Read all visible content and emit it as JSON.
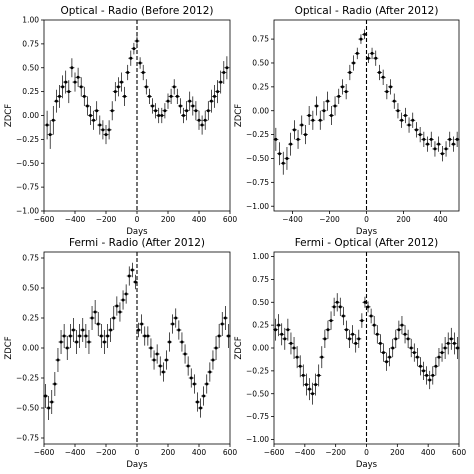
{
  "chart_data": [
    {
      "type": "scatter",
      "title": "Optical - Radio (Before 2012)",
      "xlabel": "Days",
      "ylabel": "ZDCF",
      "xlim": [
        -600,
        600
      ],
      "ylim": [
        -1.0,
        1.0
      ],
      "xticks": [
        -600,
        -400,
        -200,
        0,
        200,
        400,
        600
      ],
      "yticks": [
        -1.0,
        -0.75,
        -0.5,
        -0.25,
        0.0,
        0.25,
        0.5,
        0.75,
        1.0
      ],
      "ytick_labels": [
        "−1.00",
        "−0.75",
        "−0.50",
        "−0.25",
        "0.00",
        "0.25",
        "0.50",
        "0.75",
        "1.00"
      ],
      "vline_x": 0,
      "series": [
        {
          "x": [
            -580,
            -560,
            -540,
            -520,
            -500,
            -480,
            -460,
            -440,
            -420,
            -400,
            -380,
            -360,
            -340,
            -320,
            -300,
            -280,
            -260,
            -240,
            -220,
            -200,
            -180,
            -160,
            -140,
            -120,
            -100,
            -80,
            -60,
            -40,
            -20,
            0,
            20,
            40,
            60,
            80,
            100,
            120,
            140,
            160,
            180,
            200,
            220,
            240,
            260,
            280,
            300,
            320,
            340,
            360,
            380,
            400,
            420,
            440,
            460,
            480,
            500,
            520,
            540,
            560,
            580
          ],
          "y": [
            -0.1,
            -0.2,
            -0.05,
            0.15,
            0.2,
            0.3,
            0.35,
            0.25,
            0.5,
            0.35,
            0.4,
            0.3,
            0.2,
            0.1,
            0.0,
            -0.05,
            0.05,
            -0.1,
            -0.15,
            -0.2,
            -0.15,
            0.05,
            0.25,
            0.3,
            0.35,
            0.2,
            0.45,
            0.6,
            0.7,
            0.78,
            0.55,
            0.45,
            0.3,
            0.2,
            0.1,
            0.05,
            0.0,
            0.0,
            0.05,
            0.15,
            0.2,
            0.3,
            0.2,
            0.1,
            0.0,
            0.05,
            0.15,
            0.1,
            0.05,
            -0.05,
            -0.1,
            -0.05,
            0.05,
            0.15,
            0.2,
            0.25,
            0.35,
            0.45,
            0.5
          ],
          "err": [
            0.15,
            0.15,
            0.15,
            0.12,
            0.12,
            0.12,
            0.12,
            0.12,
            0.1,
            0.1,
            0.1,
            0.1,
            0.1,
            0.1,
            0.1,
            0.1,
            0.1,
            0.1,
            0.1,
            0.1,
            0.1,
            0.1,
            0.1,
            0.1,
            0.1,
            0.1,
            0.08,
            0.08,
            0.06,
            0.05,
            0.06,
            0.08,
            0.08,
            0.08,
            0.08,
            0.08,
            0.08,
            0.08,
            0.08,
            0.08,
            0.08,
            0.08,
            0.08,
            0.08,
            0.08,
            0.1,
            0.1,
            0.1,
            0.1,
            0.1,
            0.1,
            0.1,
            0.1,
            0.12,
            0.12,
            0.12,
            0.12,
            0.12,
            0.12
          ]
        }
      ]
    },
    {
      "type": "scatter",
      "title": "Optical - Radio (After 2012)",
      "xlabel": "Days",
      "ylabel": "ZDCF",
      "xlim": [
        -500,
        500
      ],
      "ylim": [
        -1.05,
        0.95
      ],
      "xticks": [
        -400,
        -200,
        0,
        200,
        400
      ],
      "yticks": [
        -1.0,
        -0.75,
        -0.5,
        -0.25,
        0.0,
        0.25,
        0.5,
        0.75
      ],
      "ytick_labels": [
        "−1.00",
        "−0.75",
        "−0.50",
        "−0.25",
        "0.00",
        "0.25",
        "0.50",
        "0.75"
      ],
      "vline_x": 0,
      "series": [
        {
          "x": [
            -490,
            -470,
            -450,
            -430,
            -410,
            -390,
            -370,
            -350,
            -330,
            -310,
            -290,
            -270,
            -250,
            -230,
            -210,
            -190,
            -170,
            -150,
            -130,
            -110,
            -90,
            -70,
            -50,
            -30,
            -10,
            10,
            30,
            50,
            70,
            90,
            110,
            130,
            150,
            170,
            190,
            210,
            230,
            250,
            270,
            290,
            310,
            330,
            350,
            370,
            390,
            410,
            430,
            450,
            470,
            490
          ],
          "y": [
            -0.3,
            -0.45,
            -0.55,
            -0.5,
            -0.35,
            -0.2,
            -0.3,
            -0.15,
            -0.25,
            -0.05,
            -0.1,
            0.05,
            -0.1,
            0.0,
            0.1,
            -0.05,
            0.05,
            0.15,
            0.25,
            0.2,
            0.4,
            0.5,
            0.6,
            0.75,
            0.8,
            0.55,
            0.6,
            0.55,
            0.4,
            0.35,
            0.2,
            0.25,
            0.1,
            0.0,
            -0.1,
            -0.05,
            -0.15,
            -0.1,
            -0.2,
            -0.25,
            -0.3,
            -0.35,
            -0.3,
            -0.4,
            -0.35,
            -0.45,
            -0.4,
            -0.3,
            -0.35,
            -0.3
          ],
          "err": [
            0.12,
            0.12,
            0.12,
            0.12,
            0.12,
            0.1,
            0.1,
            0.1,
            0.1,
            0.1,
            0.1,
            0.1,
            0.1,
            0.1,
            0.1,
            0.1,
            0.1,
            0.08,
            0.08,
            0.08,
            0.08,
            0.08,
            0.06,
            0.05,
            0.05,
            0.05,
            0.06,
            0.08,
            0.08,
            0.08,
            0.08,
            0.08,
            0.08,
            0.08,
            0.08,
            0.08,
            0.08,
            0.08,
            0.08,
            0.08,
            0.08,
            0.08,
            0.08,
            0.08,
            0.08,
            0.08,
            0.08,
            0.08,
            0.08,
            0.08
          ]
        }
      ]
    },
    {
      "type": "scatter",
      "title": "Fermi - Radio (After 2012)",
      "xlabel": "Days",
      "ylabel": "ZDCF",
      "xlim": [
        -600,
        600
      ],
      "ylim": [
        -0.8,
        0.8
      ],
      "xticks": [
        -600,
        -400,
        -200,
        0,
        200,
        400,
        600
      ],
      "yticks": [
        -0.75,
        -0.5,
        -0.25,
        0.0,
        0.25,
        0.5,
        0.75
      ],
      "ytick_labels": [
        "−0.75",
        "−0.50",
        "−0.25",
        "0.00",
        "0.25",
        "0.50",
        "0.75"
      ],
      "vline_x": 0,
      "series": [
        {
          "x": [
            -590,
            -570,
            -550,
            -530,
            -510,
            -490,
            -470,
            -450,
            -430,
            -410,
            -390,
            -370,
            -350,
            -330,
            -310,
            -290,
            -270,
            -250,
            -230,
            -210,
            -190,
            -170,
            -150,
            -130,
            -110,
            -90,
            -70,
            -50,
            -30,
            -10,
            10,
            30,
            50,
            70,
            90,
            110,
            130,
            150,
            170,
            190,
            210,
            230,
            250,
            270,
            290,
            310,
            330,
            350,
            370,
            390,
            410,
            430,
            450,
            470,
            490,
            510,
            530,
            550,
            570,
            590
          ],
          "y": [
            -0.4,
            -0.5,
            -0.45,
            -0.3,
            -0.1,
            0.05,
            0.1,
            0.0,
            0.1,
            0.15,
            0.05,
            0.1,
            0.15,
            0.1,
            0.05,
            0.25,
            0.3,
            0.2,
            0.1,
            0.05,
            0.1,
            0.15,
            0.25,
            0.35,
            0.3,
            0.4,
            0.45,
            0.6,
            0.65,
            0.55,
            0.15,
            0.2,
            0.1,
            0.1,
            0.0,
            -0.1,
            -0.05,
            -0.15,
            -0.2,
            -0.1,
            0.05,
            0.2,
            0.25,
            0.15,
            0.05,
            -0.05,
            -0.15,
            -0.25,
            -0.3,
            -0.45,
            -0.5,
            -0.4,
            -0.3,
            -0.2,
            -0.1,
            0.0,
            0.1,
            0.2,
            0.25,
            0.1
          ],
          "err": [
            0.1,
            0.1,
            0.1,
            0.1,
            0.1,
            0.1,
            0.1,
            0.1,
            0.1,
            0.1,
            0.1,
            0.1,
            0.1,
            0.1,
            0.1,
            0.1,
            0.1,
            0.1,
            0.1,
            0.1,
            0.1,
            0.1,
            0.1,
            0.08,
            0.08,
            0.08,
            0.08,
            0.08,
            0.06,
            0.06,
            0.06,
            0.08,
            0.08,
            0.08,
            0.08,
            0.08,
            0.08,
            0.08,
            0.08,
            0.08,
            0.08,
            0.08,
            0.08,
            0.08,
            0.08,
            0.08,
            0.08,
            0.08,
            0.08,
            0.08,
            0.08,
            0.08,
            0.08,
            0.08,
            0.08,
            0.1,
            0.1,
            0.1,
            0.1,
            0.1
          ]
        }
      ]
    },
    {
      "type": "scatter",
      "title": "Fermi - Optical (After 2012)",
      "xlabel": "Days",
      "ylabel": "ZDCF",
      "xlim": [
        -600,
        600
      ],
      "ylim": [
        -1.05,
        1.05
      ],
      "xticks": [
        -600,
        -400,
        -200,
        0,
        200,
        400,
        600
      ],
      "yticks": [
        -1.0,
        -0.75,
        -0.5,
        -0.25,
        0.0,
        0.25,
        0.5,
        0.75,
        1.0
      ],
      "ytick_labels": [
        "−1.00",
        "−0.75",
        "−0.50",
        "−0.25",
        "0.00",
        "0.25",
        "0.50",
        "0.75",
        "1.00"
      ],
      "vline_x": 0,
      "series": [
        {
          "x": [
            -590,
            -570,
            -550,
            -530,
            -510,
            -490,
            -470,
            -450,
            -430,
            -410,
            -390,
            -370,
            -350,
            -330,
            -310,
            -290,
            -270,
            -250,
            -230,
            -210,
            -190,
            -170,
            -150,
            -130,
            -110,
            -90,
            -70,
            -50,
            -30,
            -10,
            10,
            30,
            50,
            70,
            90,
            110,
            130,
            150,
            170,
            190,
            210,
            230,
            250,
            270,
            290,
            310,
            330,
            350,
            370,
            390,
            410,
            430,
            450,
            470,
            490,
            510,
            530,
            550,
            570,
            590
          ],
          "y": [
            0.2,
            0.25,
            0.15,
            0.1,
            0.2,
            0.05,
            0.0,
            -0.1,
            -0.2,
            -0.3,
            -0.4,
            -0.45,
            -0.5,
            -0.4,
            -0.3,
            -0.1,
            0.1,
            0.2,
            0.3,
            0.45,
            0.5,
            0.45,
            0.35,
            0.2,
            0.1,
            0.15,
            0.05,
            0.1,
            0.3,
            0.5,
            0.45,
            0.35,
            0.25,
            0.15,
            0.05,
            -0.05,
            -0.15,
            -0.1,
            0.0,
            0.1,
            0.2,
            0.25,
            0.15,
            0.1,
            0.0,
            -0.05,
            -0.1,
            -0.2,
            -0.25,
            -0.3,
            -0.35,
            -0.3,
            -0.2,
            -0.1,
            -0.05,
            0.0,
            0.05,
            0.1,
            0.05,
            0.0
          ],
          "err": [
            0.12,
            0.12,
            0.12,
            0.12,
            0.12,
            0.12,
            0.12,
            0.12,
            0.12,
            0.12,
            0.12,
            0.12,
            0.12,
            0.12,
            0.12,
            0.12,
            0.1,
            0.1,
            0.1,
            0.1,
            0.1,
            0.1,
            0.1,
            0.1,
            0.1,
            0.1,
            0.1,
            0.1,
            0.08,
            0.06,
            0.06,
            0.08,
            0.1,
            0.1,
            0.1,
            0.1,
            0.1,
            0.1,
            0.1,
            0.1,
            0.1,
            0.1,
            0.1,
            0.1,
            0.1,
            0.1,
            0.1,
            0.1,
            0.1,
            0.1,
            0.1,
            0.1,
            0.1,
            0.1,
            0.1,
            0.12,
            0.12,
            0.12,
            0.12,
            0.12
          ]
        }
      ]
    }
  ]
}
